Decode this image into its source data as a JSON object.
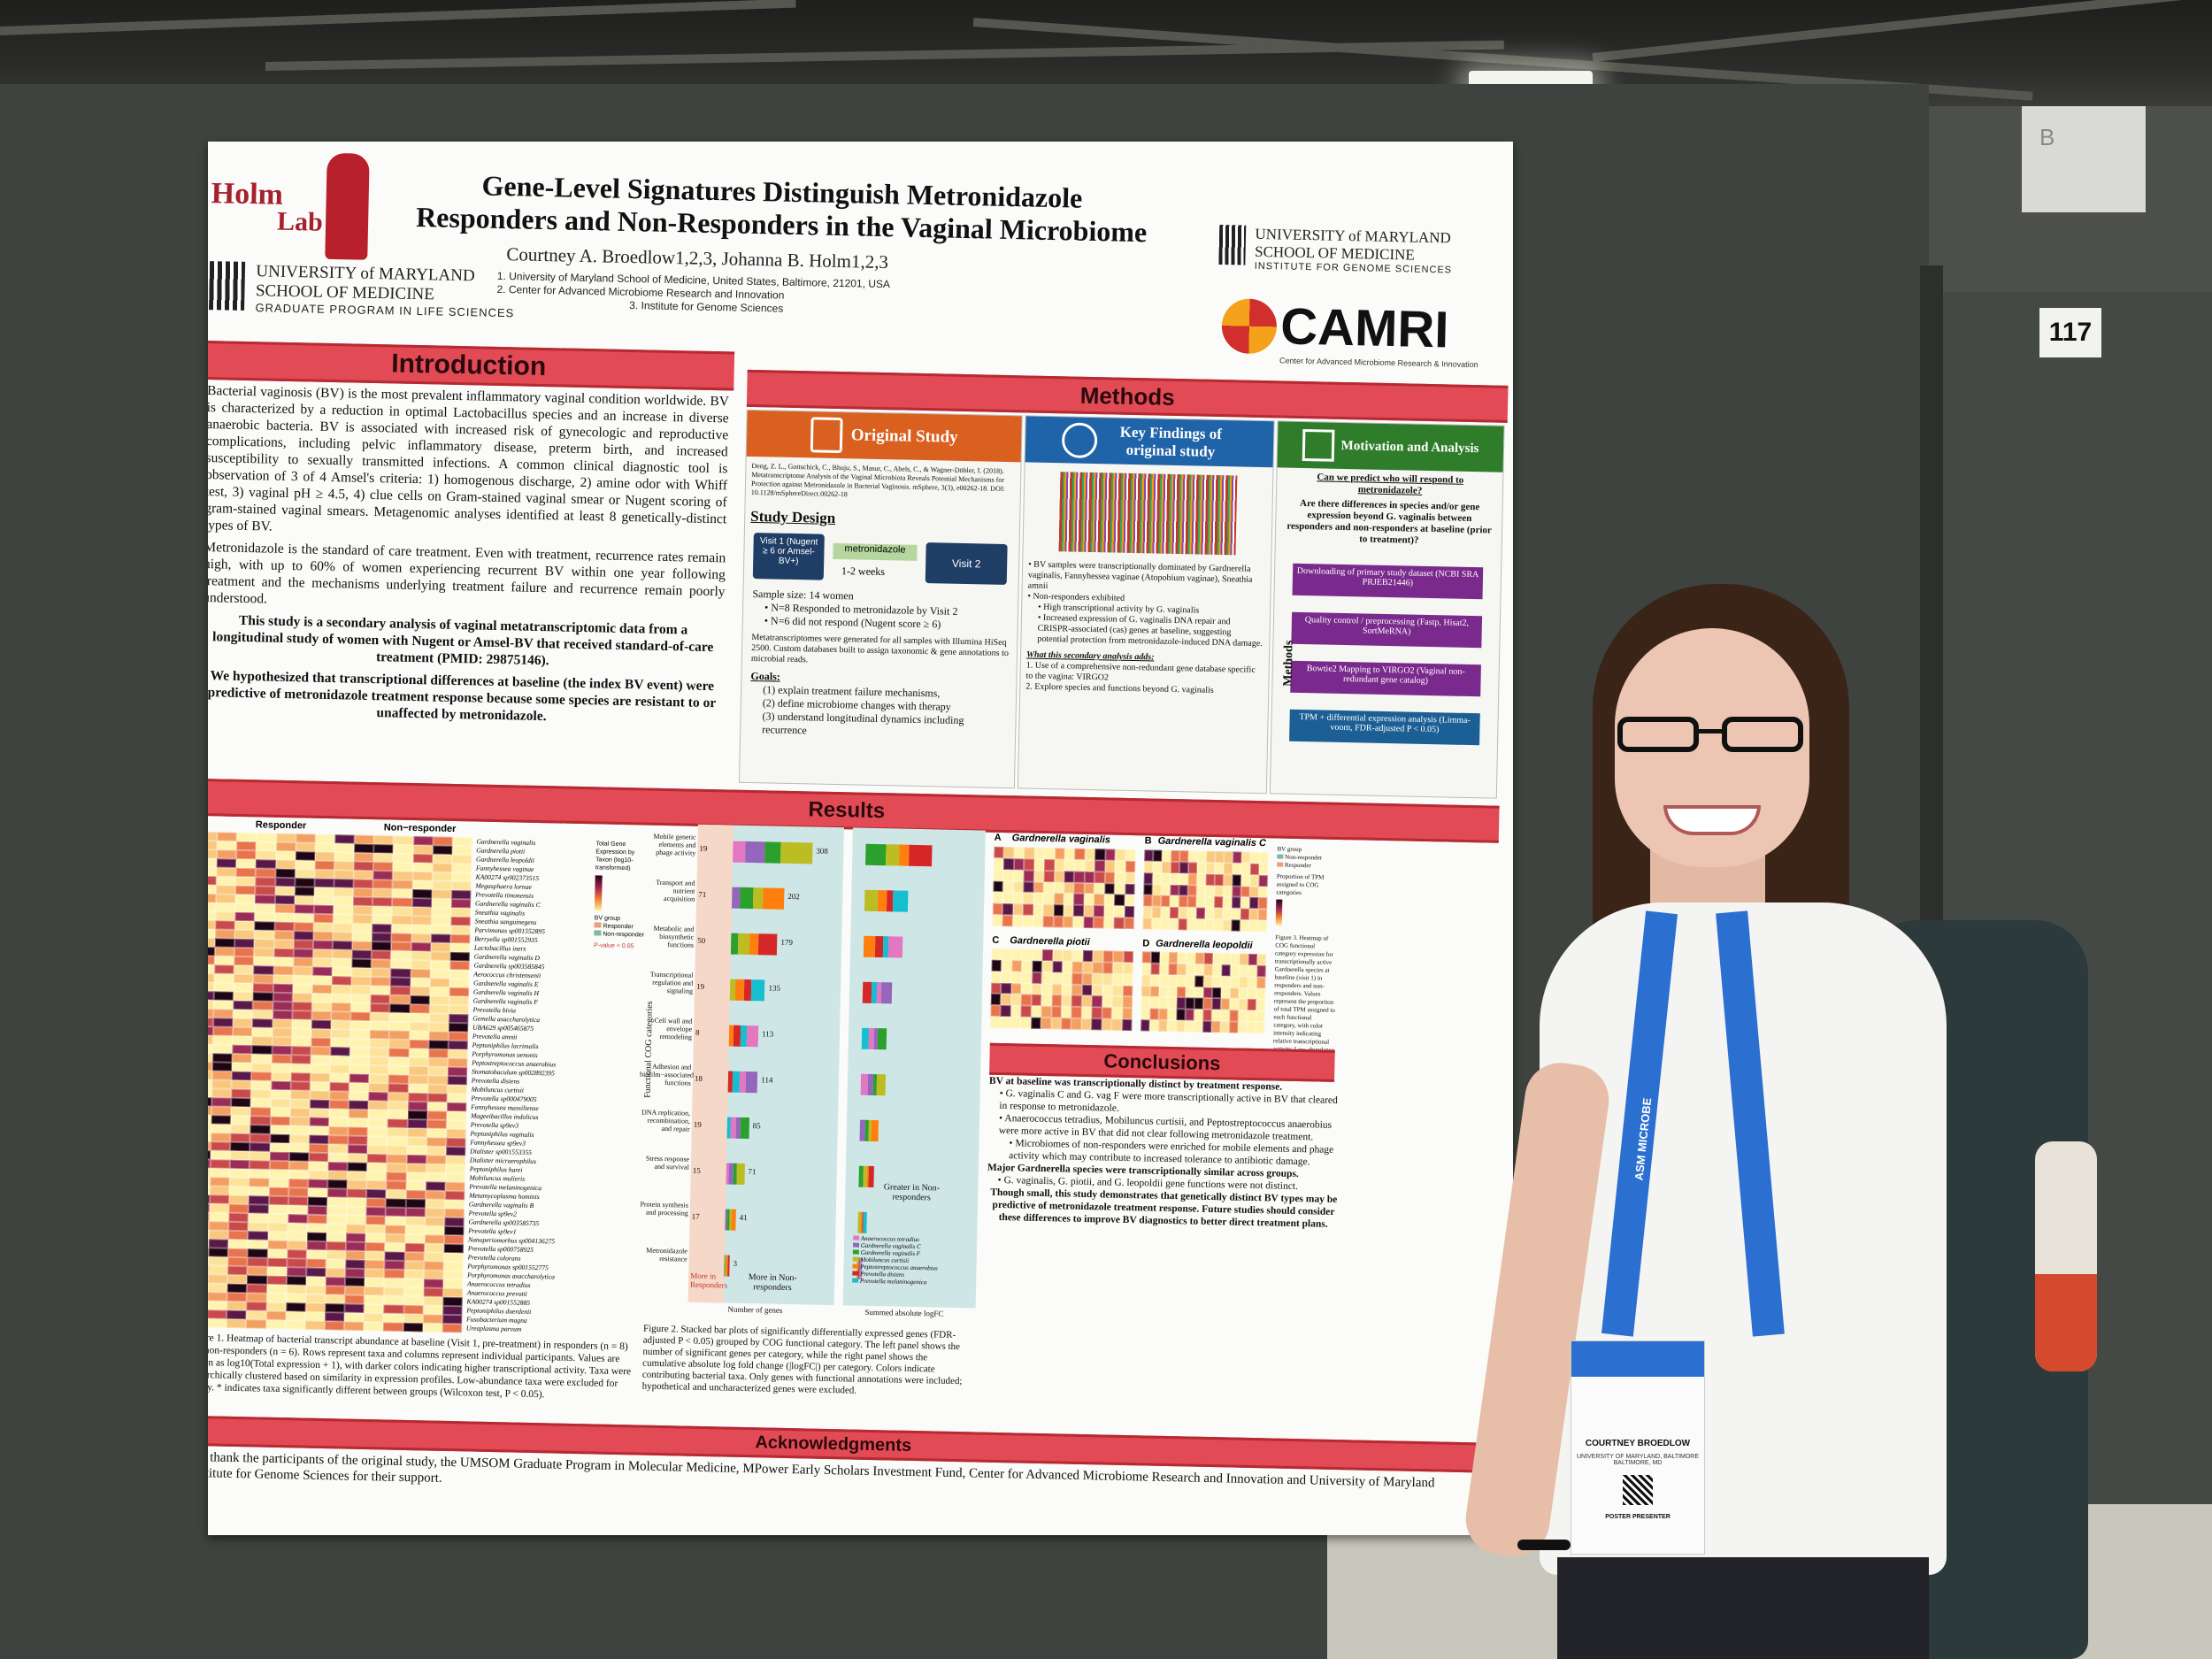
{
  "scene": {
    "booth_number": "117",
    "sign_letter": "B"
  },
  "poster": {
    "title_line1": "Gene-Level Signatures Distinguish Metronidazole",
    "title_line2": "Responders and Non-Responders in the Vaginal Microbiome",
    "authors": "Courtney A. Broedlow1,2,3, Johanna B. Holm1,2,3",
    "affiliation1": "1.  University of Maryland School of Medicine, United States, Baltimore, 21201, USA",
    "affiliation2": "2.  Center for Advanced Microbiome Research and Innovation",
    "affiliation3": "3.  Institute for Genome Sciences",
    "logo_left_top": "Holm",
    "logo_left_bottom": "Lab",
    "umd_left_line1": "UNIVERSITY of MARYLAND",
    "umd_left_line2": "SCHOOL OF MEDICINE",
    "umd_left_line3": "GRADUATE PROGRAM IN LIFE SCIENCES",
    "umd_right_line1": "UNIVERSITY of MARYLAND",
    "umd_right_line2": "SCHOOL OF MEDICINE",
    "umd_right_line3": "INSTITUTE FOR GENOME SCIENCES",
    "camri_name": "CAMRI",
    "camri_sub": "Center for Advanced Microbiome Research & Innovation",
    "introduction": {
      "heading": "Introduction",
      "p1": "Bacterial vaginosis (BV) is the most prevalent inflammatory vaginal condition worldwide. BV is characterized by a reduction in optimal Lactobacillus species and an increase in diverse anaerobic bacteria. BV is associated with increased risk of gynecologic and reproductive complications, including pelvic inflammatory disease, preterm birth, and increased susceptibility to sexually transmitted infections. A common clinical diagnostic tool is observation of 3 of 4 Amsel's criteria: 1) homogenous discharge, 2) amine odor with Whiff test, 3) vaginal pH ≥ 4.5, 4) clue cells on Gram-stained vaginal smear or Nugent scoring of gram-stained vaginal smears. Metagenomic analyses identified at least 8 genetically-distinct types of BV.",
      "p2": "Metronidazole is the standard of care treatment. Even with treatment, recurrence rates remain high, with up to 60% of women experiencing recurrent BV within one year following treatment and the mechanisms underlying treatment failure and recurrence remain poorly understood.",
      "p3": "This study is a secondary analysis of vaginal metatranscriptomic data from a longitudinal study of women with Nugent or Amsel-BV that received standard-of-care treatment (PMID: 29875146).",
      "p4": "We hypothesized that transcriptional differences at baseline (the index BV event) were predictive of metronidazole treatment response because some species are resistant to or unaffected by metronidazole."
    },
    "methods": {
      "heading": "Methods",
      "original_study": "Original Study",
      "key_findings": "Key Findings of original study",
      "motivation": "Motivation and Analysis",
      "citation": "Deng, Z. L., Gottschick, C., Bhuju, S., Masur, C., Abels, C., & Wagner-Döbler, I. (2018). Metatranscriptome Analysis of the Vaginal Microbiota Reveals Potential Mechanisms for Protection against Metronidazole in Bacterial Vaginosis. mSphere, 3(3), e00262-18. DOI: 10.1128/mSphereDirect.00262-18",
      "study_design": "Study Design",
      "visit1": "Visit 1 (Nugent ≥ 6 or Amsel-BV+)",
      "drug": "metronidazole",
      "weeks": "1-2 weeks",
      "visit2": "Visit 2",
      "sample_size": "Sample size: 14 women",
      "n8": "N=8 Responded to metronidazole by Visit 2",
      "n6": "N=6 did not respond (Nugent score ≥ 6)",
      "seq": "Metatranscriptomes were generated for all samples with Illumina HiSeq 2500. Custom databases built to assign taxonomic & gene annotations to microbial reads.",
      "goals": "Goals:",
      "goal1": "(1) explain treatment failure mechanisms,",
      "goal2": "(2) define microbiome changes with therapy",
      "goal3": "(3) understand longitudinal dynamics including recurrence",
      "kf1": "BV samples were transcriptionally dominated by Gardnerella vaginalis, Fannyhessea vaginae (Atopobium vaginae), Sneathia amnii",
      "kf2": "Non-responders exhibited",
      "kf3": "High transcriptional activity by G. vaginalis",
      "kf4": "Increased expression of G. vaginalis DNA repair and CRISPR-associated (cas) genes at baseline, suggesting potential protection from metronidazole-induced DNA damage.",
      "kf5": "What this secondary analysis adds:",
      "kf6": "1. Use of a comprehensive non-redundant gene database specific to the vagina: VIRGO2",
      "kf7": "2. Explore species and functions beyond G. vaginalis",
      "q1": "Can we predict who will respond to metronidazole?",
      "q2": "Are there differences in species and/or gene expression beyond G. vaginalis between responders and non-responders at baseline (prior to treatment)?",
      "flow1": "Downloading of primary study dataset (NCBI SRA PRJEB21446)",
      "flow2": "Quality control / preprocessing (Fastp, Hisat2, SortMeRNA)",
      "flow3": "Bowtie2 Mapping to VIRGO2 (Vaginal non-redundant gene catalog)",
      "flow4": "TPM + differential expression analysis (Limma-voom, FDR-adjusted P < 0.05)",
      "methods_side": "Methods"
    },
    "results": {
      "heading": "Results",
      "hm_responder": "Responder",
      "hm_nonresponder": "Non−responder",
      "taxa": [
        "Gardnerella vaginalis",
        "Gardnerella piotii",
        "Gardnerella leopoldii",
        "Fannyhessea vaginae",
        "KA00274 sp902373515",
        "Megasphaera lornae",
        "Prevotella timonensis",
        "Gardnerella vaginalis C",
        "Sneathia vaginalis",
        "Sneathia sanguinegens",
        "Parvimonas sp001552895",
        "Berryella sp001552935",
        "Lactobacillus iners",
        "Gardnerella vaginalis D",
        "Gardnerella sp003585845",
        "Aerococcus christensenii",
        "Gardnerella vaginalis E",
        "Gardnerella vaginalis H",
        "Gardnerella vaginalis F",
        "Prevotella bivia",
        "Gemella asaccharolytica",
        "UBA629 sp005465875",
        "Prevotella amnii",
        "Peptoniphilus lacrimalis",
        "Porphyromonas uenonis",
        "Peptostreptococcus anaerobius",
        "Stomatobaculum sp002892395",
        "Prevotella disiens",
        "Mobiluncus curtisii",
        "Prevotella sp000479005",
        "Fannyhessea massiliense",
        "Mageeibacillus indolicus",
        "Prevotella sp9ev3",
        "Peptoniphilus vaginalis",
        "Fannyhessea sp9ev3",
        "Dialister sp001553355",
        "Dialister micraerophilus",
        "Peptoniphilus harei",
        "Mobiluncus mulieris",
        "Prevotella melaninogenica",
        "Metamycoplasma hominis",
        "Gardnerella vaginalis B",
        "Prevotella sp9ev2",
        "Gardnerella sp003585735",
        "Prevotella sp9ev1",
        "Nanoperiomorbus sp004136275",
        "Prevotella sp000758925",
        "Prevotella colorans",
        "Porphyromonas sp001552775",
        "Porphyromonas asaccharolytica",
        "Anaerococcus tetradius",
        "Anaerococcus prevotii",
        "KA00274 sp001552885",
        "Peptoniphilus duerdenii",
        "Fusobacterium magna",
        "Ureaplasma parvum"
      ],
      "legend_total": "Total Gene Expression by Taxon (log10-transformed)",
      "legend_group": "BV group",
      "legend_responder": "Responder",
      "legend_nonresponder": "Non-responder",
      "legend_p": "P-value < 0.05",
      "fig1_caption": "Figure 1. Heatmap of bacterial transcript abundance at baseline (Visit 1, pre-treatment) in responders (n = 8) and non-responders (n = 6). Rows represent taxa and columns represent individual participants. Values are shown as log10(Total expression + 1), with darker colors indicating higher transcriptional activity. Taxa were hierarchically clustered based on similarity in expression profiles. Low-abundance taxa were excluded for clarity. * indicates taxa significantly different between groups (Wilcoxon test, P < 0.05).",
      "cog_categories": [
        "Mobile genetic elements and phage activity",
        "Transport and nutrient acquisition",
        "Metabolic and biosynthetic functions",
        "Transcriptional regulation and signaling",
        "Cell wall and envelope remodeling",
        "Adhesion and biofilm−associated functions",
        "DNA replication, recombination, and repair",
        "Stress response and survival",
        "Protein synthesis and processing",
        "Metronidazole resistance"
      ],
      "bar_left_counts": [
        19,
        71,
        50,
        19,
        8,
        18,
        19,
        15,
        17,
        0
      ],
      "bar_right_counts": [
        308,
        202,
        179,
        135,
        113,
        114,
        85,
        71,
        41,
        3
      ],
      "y_axis_label": "Functional COG categories",
      "more_in_responders": "More in Responders",
      "more_in_nonresponders": "More in Non-responders",
      "greater_in_nonresponders": "Greater in Non-responders",
      "x_label_left": "Number of genes",
      "x_label_right": "Summed absolute logFC",
      "taxa_legend": [
        "Anaerococcus tetradius",
        "Gardnerella vaginalis C",
        "Gardnerella vaginalis F",
        "Mobiluncus curtisii",
        "Peptostreptococcus anaerobius",
        "Prevotella disiens",
        "Prevotella melaninogenica"
      ],
      "fig2_caption": "Figure 2. Stacked bar plots of significantly differentially expressed genes (FDR-adjusted P < 0.05) grouped by COG functional category. The left panel shows the number of significant genes per category, while the right panel shows the cumulative absolute log fold change (|logFC|) per category. Colors indicate contributing bacterial taxa. Only genes with functional annotations were included; hypothetical and uncharacterized genes were excluded.",
      "panelA": "A",
      "panelA_title": "Gardnerella vaginalis",
      "panelB": "B",
      "panelB_title": "Gardnerella vaginalis C",
      "panelC": "C",
      "panelC_title": "Gardnerella piotii",
      "panelD": "D",
      "panelD_title": "Gardnerella leopoldii",
      "fig3_legend_group": "BV group",
      "fig3_legend_prop": "Proportion of TPM assigned to COG categories",
      "fig3_caption": "Figure 3. Heatmap of COG functional category expression for transcriptionally active Gardnerella species at baseline (visit 1) in responders and non-responders. Values represent the proportion of total TPM assigned to each functional category, with color intensity indicating relative transcriptional activity. Low-abundance categories were excluded for clarity."
    },
    "conclusions": {
      "heading": "Conclusions",
      "c1": "BV at baseline was transcriptionally distinct by treatment response.",
      "c2": "G. vaginalis C and G. vag F were more transcriptionally active in BV that cleared in response to metronidazole.",
      "c3": "Anaerococcus tetradius, Mobiluncus curtisii, and Peptostreptococcus anaerobius were more active in BV that did not clear following metronidazole treatment.",
      "c4": "Microbiomes of non-responders were enriched for mobile elements and phage activity which may contribute to increased tolerance to antibiotic damage.",
      "c5": "Major Gardnerella species were transcriptionally similar across groups.",
      "c6": "G. vaginalis, G. piotii, and G. leopoldii gene functions were not distinct.",
      "c7": "Though small, this study demonstrates that genetically distinct BV types may be predictive of metronidazole treatment response. Future studies should consider these differences to improve BV diagnostics to better direct treatment plans."
    },
    "acknowledgments": {
      "heading": "Acknowledgments",
      "text": "We thank the participants of the original study, the UMSOM Graduate Program in Molecular Medicine, MPower Early Scholars Investment Fund, Center for Advanced Microbiome Research and Innovation and University of Maryland Institute for Genome Sciences for their support."
    }
  },
  "badge": {
    "lanyard_text": "ASM MICROBE",
    "name": "COURTNEY BROEDLOW",
    "org": "UNIVERSITY OF MARYLAND, BALTIMORE",
    "city": "BALTIMORE, MD",
    "tag": "POSTER PRESENTER"
  },
  "colors": {
    "section_red": "#e24b56",
    "orange_header": "#d9601f",
    "blue_header": "#1f63a8",
    "green_header": "#2f7d2a",
    "flow_purple": "#7a2a8c",
    "shirt": "#f4f4f2",
    "backpack": "#2c3a3b"
  }
}
